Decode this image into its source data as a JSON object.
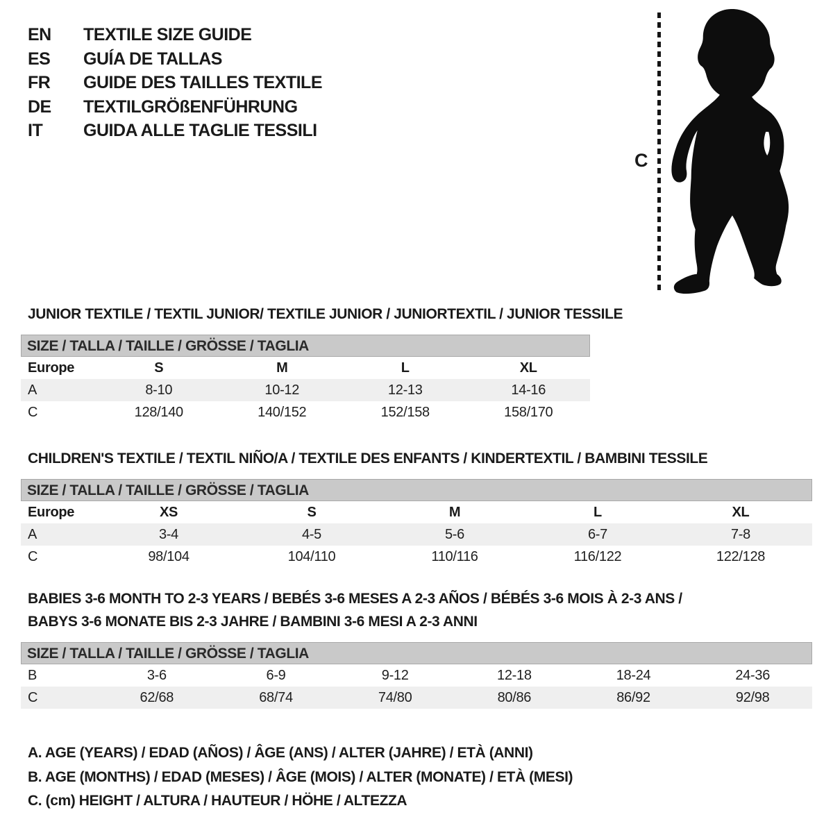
{
  "colors": {
    "text": "#1a1a1a",
    "header_bar_bg": "#c9c9c9",
    "header_bar_border": "#a8a8a8",
    "row_shaded_bg": "#efefef",
    "silhouette": "#0d0d0d"
  },
  "languages": [
    {
      "code": "EN",
      "label": "TEXTILE SIZE GUIDE"
    },
    {
      "code": "ES",
      "label": "GUÍA DE TALLAS"
    },
    {
      "code": "FR",
      "label": "GUIDE DES TAILLES TEXTILE"
    },
    {
      "code": "DE",
      "label": "TEXTILGRÖßENFÜHRUNG"
    },
    {
      "code": "IT",
      "label": "GUIDA ALLE TAGLIE TESSILI"
    }
  ],
  "figure": {
    "name": "toddler-silhouette",
    "measure_label": "C"
  },
  "size_header": "SIZE / TALLA / TAILLE / GRÖSSE / TAGLIA",
  "sections": [
    {
      "id": "junior",
      "title_lines": [
        "JUNIOR TEXTILE / TEXTIL JUNIOR/ TEXTILE JUNIOR / JUNIORTEXTIL / JUNIOR TESSILE"
      ],
      "rows": [
        {
          "cells": [
            "Europe",
            "S",
            "M",
            "L",
            "XL"
          ],
          "bold": true,
          "shaded": false
        },
        {
          "cells": [
            "A",
            "8-10",
            "10-12",
            "12-13",
            "14-16"
          ],
          "bold": false,
          "shaded": true
        },
        {
          "cells": [
            "C",
            "128/140",
            "140/152",
            "152/158",
            "158/170"
          ],
          "bold": false,
          "shaded": false
        }
      ]
    },
    {
      "id": "children",
      "title_lines": [
        "CHILDREN'S TEXTILE / TEXTIL NIÑO/A / TEXTILE DES ENFANTS / KINDERTEXTIL / BAMBINI TESSILE"
      ],
      "rows": [
        {
          "cells": [
            "Europe",
            "XS",
            "S",
            "M",
            "L",
            "XL"
          ],
          "bold": true,
          "shaded": false
        },
        {
          "cells": [
            "A",
            "3-4",
            "4-5",
            "5-6",
            "6-7",
            "7-8"
          ],
          "bold": false,
          "shaded": true
        },
        {
          "cells": [
            "C",
            "98/104",
            "104/110",
            "110/116",
            "116/122",
            "122/128"
          ],
          "bold": false,
          "shaded": false
        }
      ]
    },
    {
      "id": "babies",
      "title_lines": [
        "BABIES 3-6 MONTH TO 2-3 YEARS / BEBÉS 3-6 MESES A 2-3 AÑOS / BÉBÉS 3-6 MOIS À 2-3 ANS /",
        "BABYS 3-6 MONATE BIS 2-3 JAHRE / BAMBINI 3-6 MESI A 2-3 ANNI"
      ],
      "rows": [
        {
          "cells": [
            "B",
            "3-6",
            "6-9",
            "9-12",
            "12-18",
            "18-24",
            "24-36"
          ],
          "bold": false,
          "shaded": false
        },
        {
          "cells": [
            "C",
            "62/68",
            "68/74",
            "74/80",
            "80/86",
            "86/92",
            "92/98"
          ],
          "bold": false,
          "shaded": true
        }
      ]
    }
  ],
  "legend": [
    "A. AGE (YEARS) / EDAD (AÑOS) / ÂGE (ANS) / ALTER (JAHRE) / ETÀ (ANNI)",
    "B. AGE (MONTHS) / EDAD (MESES) / ÂGE (MOIS) / ALTER (MONATE) / ETÀ (MESI)",
    "C. (cm) HEIGHT / ALTURA / HAUTEUR / HÖHE / ALTEZZA"
  ]
}
